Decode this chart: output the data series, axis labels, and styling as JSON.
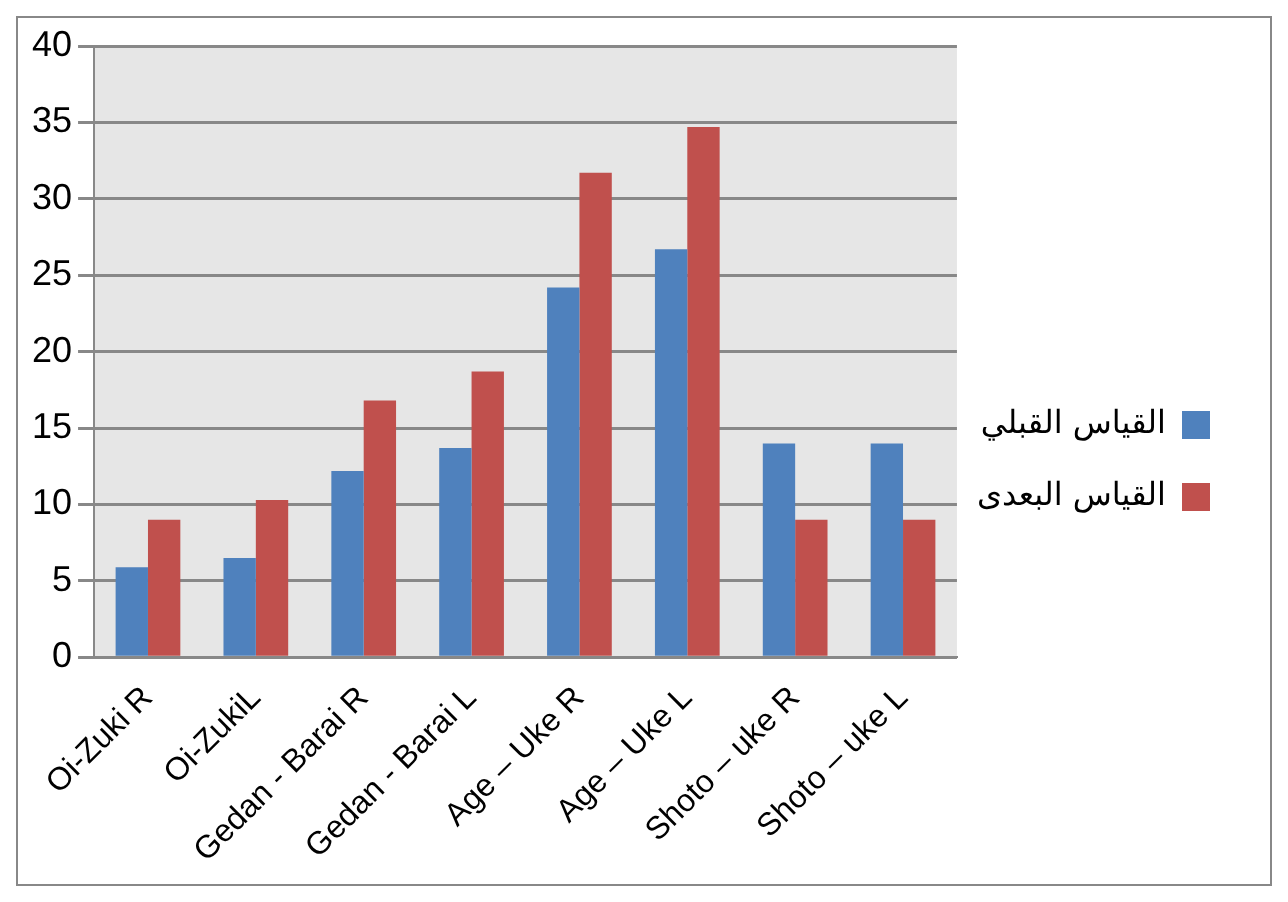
{
  "chart_data": {
    "type": "bar",
    "categories": [
      "Oi-Zuki R",
      "Oi-ZukiL",
      "Gedan - Barai R",
      "Gedan - Barai L",
      "Age – Uke R",
      "Age – Uke L",
      "Shoto – uke R",
      "Shoto – uke L"
    ],
    "series": [
      {
        "name": "القياس القبلي",
        "color": "#4f81bd",
        "values": [
          5.9,
          6.5,
          12.2,
          13.7,
          24.2,
          26.7,
          14.0,
          14.0
        ]
      },
      {
        "name": "القياس البعدى",
        "color": "#c0504d",
        "values": [
          9.0,
          10.3,
          16.8,
          18.7,
          31.7,
          34.7,
          9.0,
          9.0
        ]
      }
    ],
    "ylim": [
      0,
      40
    ],
    "yticks": [
      0,
      5,
      10,
      15,
      20,
      25,
      30,
      35,
      40
    ],
    "grid": "y",
    "legend": "right"
  }
}
